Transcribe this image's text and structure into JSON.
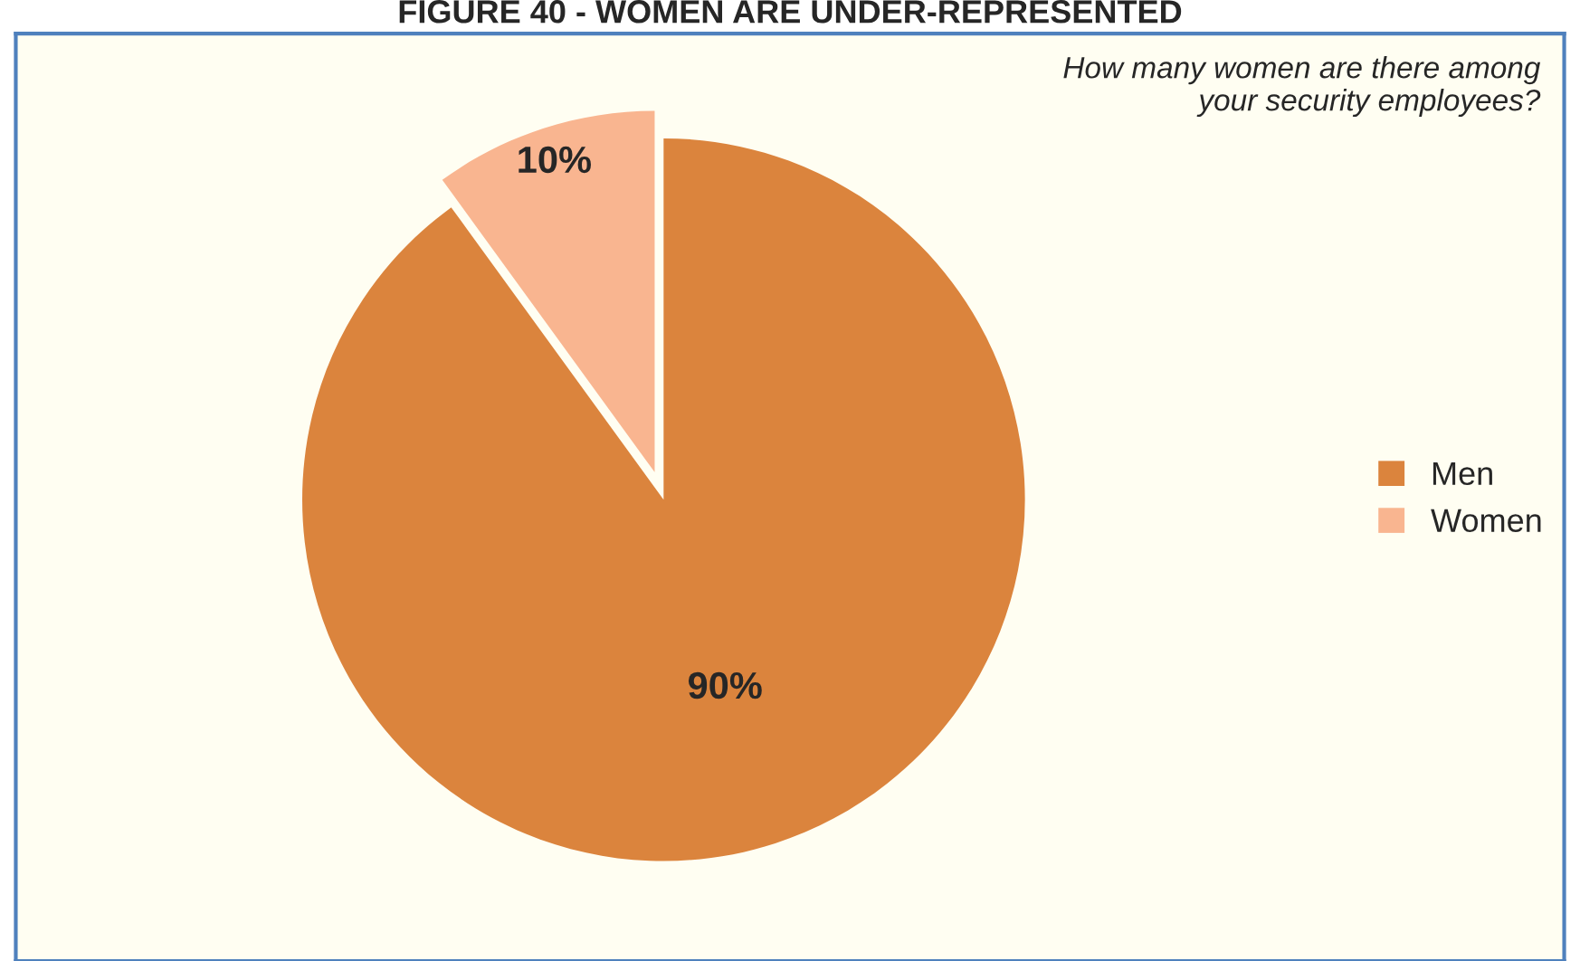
{
  "chart_data": {
    "type": "pie",
    "title": "FIGURE 40 - WOMEN ARE UNDER-REPRESENTED",
    "categories": [
      "Men",
      "Women"
    ],
    "values": [
      90,
      10
    ],
    "colors": [
      "#db843d",
      "#f9b590"
    ],
    "value_labels": [
      "90%",
      "10%"
    ],
    "annotations": [
      "How many women are there among\nyour security employees?"
    ],
    "legend": "right"
  }
}
